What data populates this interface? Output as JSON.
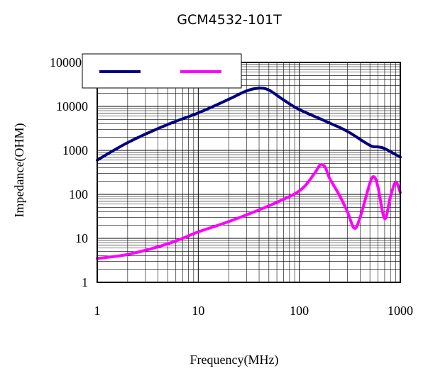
{
  "chart_data": {
    "type": "line",
    "title": "GCM4532-101T",
    "xlabel": "Frequency(MHz)",
    "ylabel": "Impedance(OHM)",
    "x_scale": "log",
    "y_scale": "log",
    "xlim": [
      1,
      1000
    ],
    "ylim": [
      1,
      100000
    ],
    "x_ticks": [
      "1",
      "10",
      "100",
      "1000"
    ],
    "y_ticks": [
      "1",
      "10",
      "100",
      "1000",
      "10000",
      "100000"
    ],
    "grid": true,
    "legend": "top-left",
    "series": [
      {
        "color": "#000080",
        "x": [
          1,
          2,
          5,
          10,
          20,
          30,
          40,
          50,
          70,
          100,
          200,
          300,
          500,
          600,
          700,
          1000
        ],
        "values": [
          600,
          1500,
          3900,
          7100,
          14500,
          22500,
          26000,
          23500,
          14000,
          8500,
          4200,
          2700,
          1300,
          1200,
          1100,
          700
        ]
      },
      {
        "color": "#FF00FF",
        "x": [
          1,
          2,
          5,
          10,
          20,
          50,
          100,
          140,
          160,
          180,
          200,
          250,
          300,
          350,
          400,
          500,
          550,
          600,
          700,
          800,
          900,
          1000
        ],
        "values": [
          3.5,
          4.3,
          7.5,
          14,
          24,
          55,
          120,
          290,
          460,
          420,
          230,
          95,
          40,
          17,
          30,
          180,
          250,
          150,
          28,
          90,
          190,
          110
        ]
      }
    ]
  }
}
